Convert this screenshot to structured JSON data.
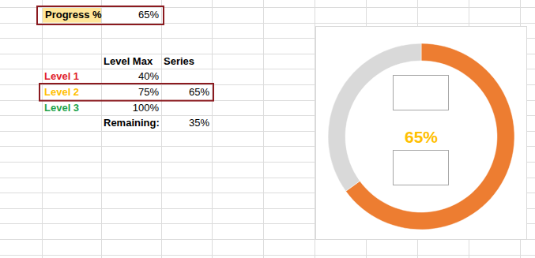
{
  "sheet": {
    "progress": {
      "label": "Progress %",
      "value": "65%"
    },
    "headers": [
      "Level Max",
      "Series"
    ],
    "rows": [
      {
        "label": "Level 1",
        "color": "#e0202a",
        "max": "40%"
      },
      {
        "label": "Level 2",
        "color": "#ffc000",
        "max": "75%",
        "series": "65%"
      },
      {
        "label": "Level 3",
        "color": "#1fa34a",
        "max": "100%"
      }
    ],
    "remaining": {
      "label": "Remaining:",
      "value": "35%"
    }
  },
  "chart_data": {
    "type": "doughnut",
    "values": [
      65,
      35
    ],
    "colors": [
      "#ed7d31",
      "#d9d9d9"
    ],
    "annotations": [
      "65%"
    ]
  }
}
